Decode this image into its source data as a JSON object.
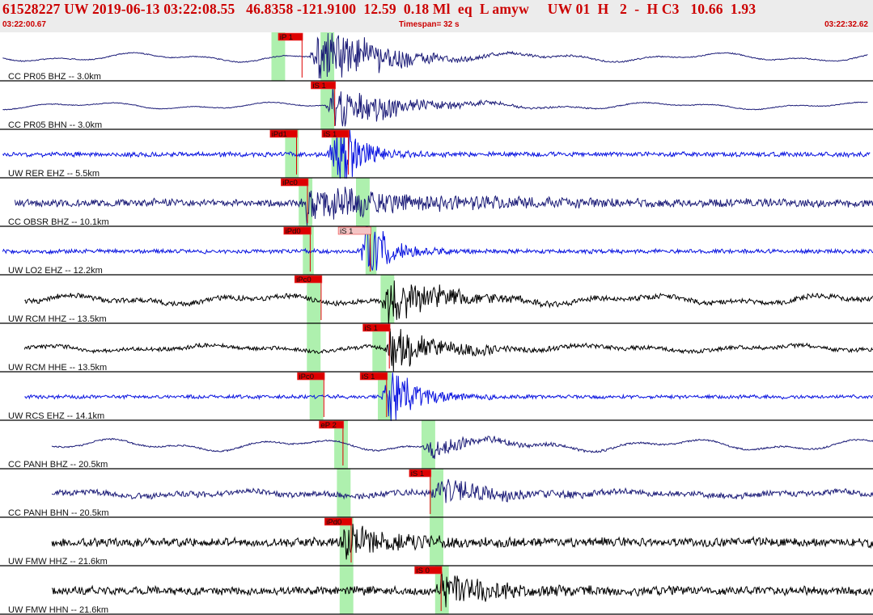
{
  "header": {
    "title": "61528227 UW 2019-06-13 03:22:08.55   46.8358 -121.9100  12.59  0.18 Ml  eq  L amyw     UW 01  H   2  -  H C3   10.66  1.93",
    "start_time": "03:22:00.67",
    "timespan": "Timespan=  32 s",
    "end_time": "03:22:32.62"
  },
  "colors": {
    "header_bg": "#ececec",
    "header_text": "#cc0000",
    "band": "#aef0ae",
    "pick": "#dd0000",
    "pick_outline": "#ee4444",
    "navy": "#1c1c78",
    "blue": "#0a14e0",
    "black": "#000000",
    "divider": "#000000"
  },
  "chart_data": {
    "type": "line",
    "title": "",
    "x_unit": "s",
    "xlim": [
      0,
      32
    ],
    "traces": [
      {
        "label": "CC PR05 BHZ -- 3.0km",
        "color": "navy",
        "t_end": 31.8,
        "amp": 0.5,
        "noise": 0.05,
        "lf": 0.9,
        "onset": 11.6,
        "burst": 3.4,
        "decay": 2.2,
        "bands": [
          {
            "t": 10.2,
            "w": 0.5
          },
          {
            "t": 12.0,
            "w": 0.5
          }
        ],
        "picks": [
          {
            "label": "iP 1",
            "t": 10.2,
            "w": 0.9,
            "filled": true
          }
        ]
      },
      {
        "label": "CC PR05 BHN -- 3.0km",
        "color": "navy",
        "t_end": 31.8,
        "amp": 0.45,
        "noise": 0.04,
        "lf": 0.8,
        "onset": 12.2,
        "burst": 2.8,
        "decay": 2.0,
        "bands": [
          {
            "t": 12.0,
            "w": 0.5
          }
        ],
        "picks": [
          {
            "label": "iS 1",
            "t": 11.4,
            "w": 0.9,
            "filled": true
          }
        ]
      },
      {
        "label": "UW RER EHZ -- 5.5km",
        "color": "blue",
        "t_end": 31.9,
        "amp": 0.25,
        "noise": 0.22,
        "lf": 0.0,
        "onset": 12.3,
        "burst": 4.2,
        "decay": 0.8,
        "bands": [
          {
            "t": 10.7,
            "w": 0.5
          },
          {
            "t": 12.4,
            "w": 0.5
          }
        ],
        "picks": [
          {
            "label": "iPd1",
            "t": 9.9,
            "w": 1.0,
            "filled": true
          },
          {
            "label": "iS 1",
            "t": 11.8,
            "w": 1.0,
            "filled": true
          }
        ]
      },
      {
        "label": "CC OBSR BHZ -- 10.1km",
        "color": "navy",
        "t_end": 32.3,
        "amp": 0.25,
        "noise": 0.35,
        "lf": 0.3,
        "onset": 11.2,
        "burst": 1.6,
        "decay": 4.0,
        "bands": [
          {
            "t": 11.2,
            "w": 0.5
          },
          {
            "t": 13.3,
            "w": 0.5
          }
        ],
        "picks": [
          {
            "label": "iPc0",
            "t": 10.3,
            "w": 1.0,
            "filled": true
          }
        ]
      },
      {
        "label": "UW LO2 EHZ -- 12.2km",
        "color": "blue",
        "t_end": 32.6,
        "amp": 0.22,
        "noise": 0.2,
        "lf": 0.0,
        "onset": 13.4,
        "burst": 3.4,
        "decay": 0.8,
        "bands": [
          {
            "t": 11.3,
            "w": 0.4
          },
          {
            "t": 13.6,
            "w": 0.4
          }
        ],
        "picks": [
          {
            "label": "iPd0",
            "t": 10.4,
            "w": 1.0,
            "filled": true
          },
          {
            "label": "iS 1",
            "t": 12.4,
            "w": 1.2,
            "filled": false
          }
        ]
      },
      {
        "label": "UW RCM HHZ -- 13.5km",
        "color": "black",
        "t_end": 32.7,
        "amp": 0.45,
        "noise": 0.25,
        "lf": 1.0,
        "onset": 14.2,
        "burst": 2.6,
        "decay": 1.6,
        "bands": [
          {
            "t": 11.5,
            "w": 0.5
          },
          {
            "t": 14.2,
            "w": 0.5
          }
        ],
        "picks": [
          {
            "label": "iPc0",
            "t": 10.8,
            "w": 1.0,
            "filled": true
          }
        ]
      },
      {
        "label": "UW RCM HHE -- 13.5km",
        "color": "black",
        "t_end": 32.7,
        "amp": 0.4,
        "noise": 0.2,
        "lf": 0.8,
        "onset": 14.3,
        "burst": 2.4,
        "decay": 1.6,
        "bands": [
          {
            "t": 11.5,
            "w": 0.5
          },
          {
            "t": 13.9,
            "w": 0.5
          }
        ],
        "picks": [
          {
            "label": "iS 1",
            "t": 13.3,
            "w": 1.0,
            "filled": true
          }
        ]
      },
      {
        "label": "UW RCS EHZ -- 14.1km",
        "color": "blue",
        "t_end": 32.7,
        "amp": 0.2,
        "noise": 0.18,
        "lf": 0.0,
        "onset": 14.2,
        "burst": 3.6,
        "decay": 0.9,
        "bands": [
          {
            "t": 11.6,
            "w": 0.5
          },
          {
            "t": 14.1,
            "w": 0.5
          }
        ],
        "picks": [
          {
            "label": "iPc0",
            "t": 10.9,
            "w": 1.0,
            "filled": true
          },
          {
            "label": "iS 1",
            "t": 13.2,
            "w": 1.0,
            "filled": true
          }
        ]
      },
      {
        "label": "CC PANH BHZ -- 20.5km",
        "color": "navy",
        "t_end": 32.2,
        "amp": 0.55,
        "noise": 0.08,
        "lf": 1.1,
        "onset": 15.7,
        "burst": 1.0,
        "decay": 2.0,
        "bands": [
          {
            "t": 12.5,
            "w": 0.5
          },
          {
            "t": 15.7,
            "w": 0.5
          }
        ],
        "picks": [
          {
            "label": "eP 2",
            "t": 11.7,
            "w": 0.9,
            "filled": true
          }
        ]
      },
      {
        "label": "CC PANH BHN -- 20.5km",
        "color": "navy",
        "t_end": 32.8,
        "amp": 0.3,
        "noise": 0.28,
        "lf": 0.9,
        "onset": 16.0,
        "burst": 1.2,
        "decay": 2.0,
        "bands": [
          {
            "t": 12.6,
            "w": 0.5
          },
          {
            "t": 16.0,
            "w": 0.5
          }
        ],
        "picks": [
          {
            "label": "iS 1",
            "t": 15.0,
            "w": 0.8,
            "filled": true
          }
        ]
      },
      {
        "label": "UW FMW HHZ -- 21.6km",
        "color": "black",
        "t_end": 32.8,
        "amp": 0.18,
        "noise": 0.42,
        "lf": 0.35,
        "onset": 12.6,
        "burst": 1.4,
        "decay": 1.8,
        "bands": [
          {
            "t": 12.7,
            "w": 0.5
          },
          {
            "t": 16.0,
            "w": 0.5
          }
        ],
        "picks": [
          {
            "label": "iPd0",
            "t": 11.9,
            "w": 1.0,
            "filled": true
          }
        ]
      },
      {
        "label": "UW FMW HHN -- 21.6km",
        "color": "black",
        "t_end": 32.8,
        "amp": 0.15,
        "noise": 0.4,
        "lf": 0.35,
        "onset": 16.1,
        "burst": 1.8,
        "decay": 1.8,
        "bands": [
          {
            "t": 12.7,
            "w": 0.5
          },
          {
            "t": 16.2,
            "w": 0.5
          }
        ],
        "picks": [
          {
            "label": "iS 0",
            "t": 15.2,
            "w": 1.0,
            "filled": true
          }
        ]
      }
    ]
  }
}
